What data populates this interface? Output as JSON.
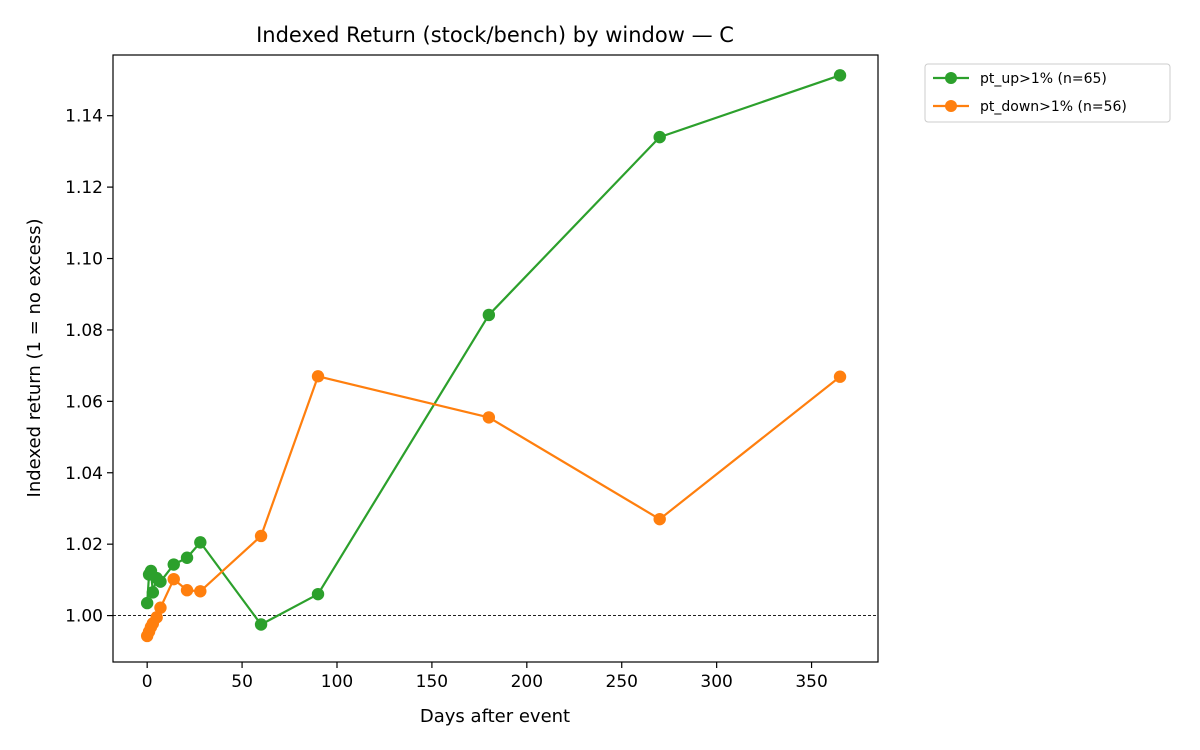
{
  "chart_data": {
    "type": "line",
    "title": "Indexed Return (stock/bench) by window — C",
    "xlabel": "Days after event",
    "ylabel": "Indexed return (1 = no excess)",
    "xlim": [
      -18,
      385
    ],
    "ylim": [
      0.987,
      1.157
    ],
    "xticks": [
      0,
      50,
      100,
      150,
      200,
      250,
      300,
      350
    ],
    "yticks": [
      1.0,
      1.02,
      1.04,
      1.06,
      1.08,
      1.1,
      1.12,
      1.14
    ],
    "xtick_labels": [
      "0",
      "50",
      "100",
      "150",
      "200",
      "250",
      "300",
      "350"
    ],
    "ytick_labels": [
      "1.00",
      "1.02",
      "1.04",
      "1.06",
      "1.08",
      "1.10",
      "1.12",
      "1.14"
    ],
    "reference_line": {
      "y": 1.0,
      "style": "dashed",
      "color": "#000000"
    },
    "grid": false,
    "legend_position": "outside-top-right",
    "series": [
      {
        "name": "pt_up>1% (n=65)",
        "color": "#2ca02c",
        "x": [
          0,
          1,
          2,
          3,
          5,
          7,
          14,
          21,
          28,
          60,
          90,
          180,
          270,
          365
        ],
        "y": [
          1.0035,
          1.0115,
          1.0125,
          1.0065,
          1.0105,
          1.0095,
          1.0143,
          1.0162,
          1.0205,
          0.9975,
          1.006,
          1.0842,
          1.134,
          1.1513
        ]
      },
      {
        "name": "pt_down>1% (n=56)",
        "color": "#ff7f0e",
        "x": [
          0,
          1,
          2,
          3,
          5,
          7,
          14,
          21,
          28,
          60,
          90,
          180,
          270,
          365
        ],
        "y": [
          0.9943,
          0.9955,
          0.9968,
          0.9978,
          0.9995,
          1.0022,
          1.0102,
          1.0071,
          1.0068,
          1.0223,
          1.067,
          1.0555,
          1.027,
          1.0669
        ]
      }
    ]
  }
}
